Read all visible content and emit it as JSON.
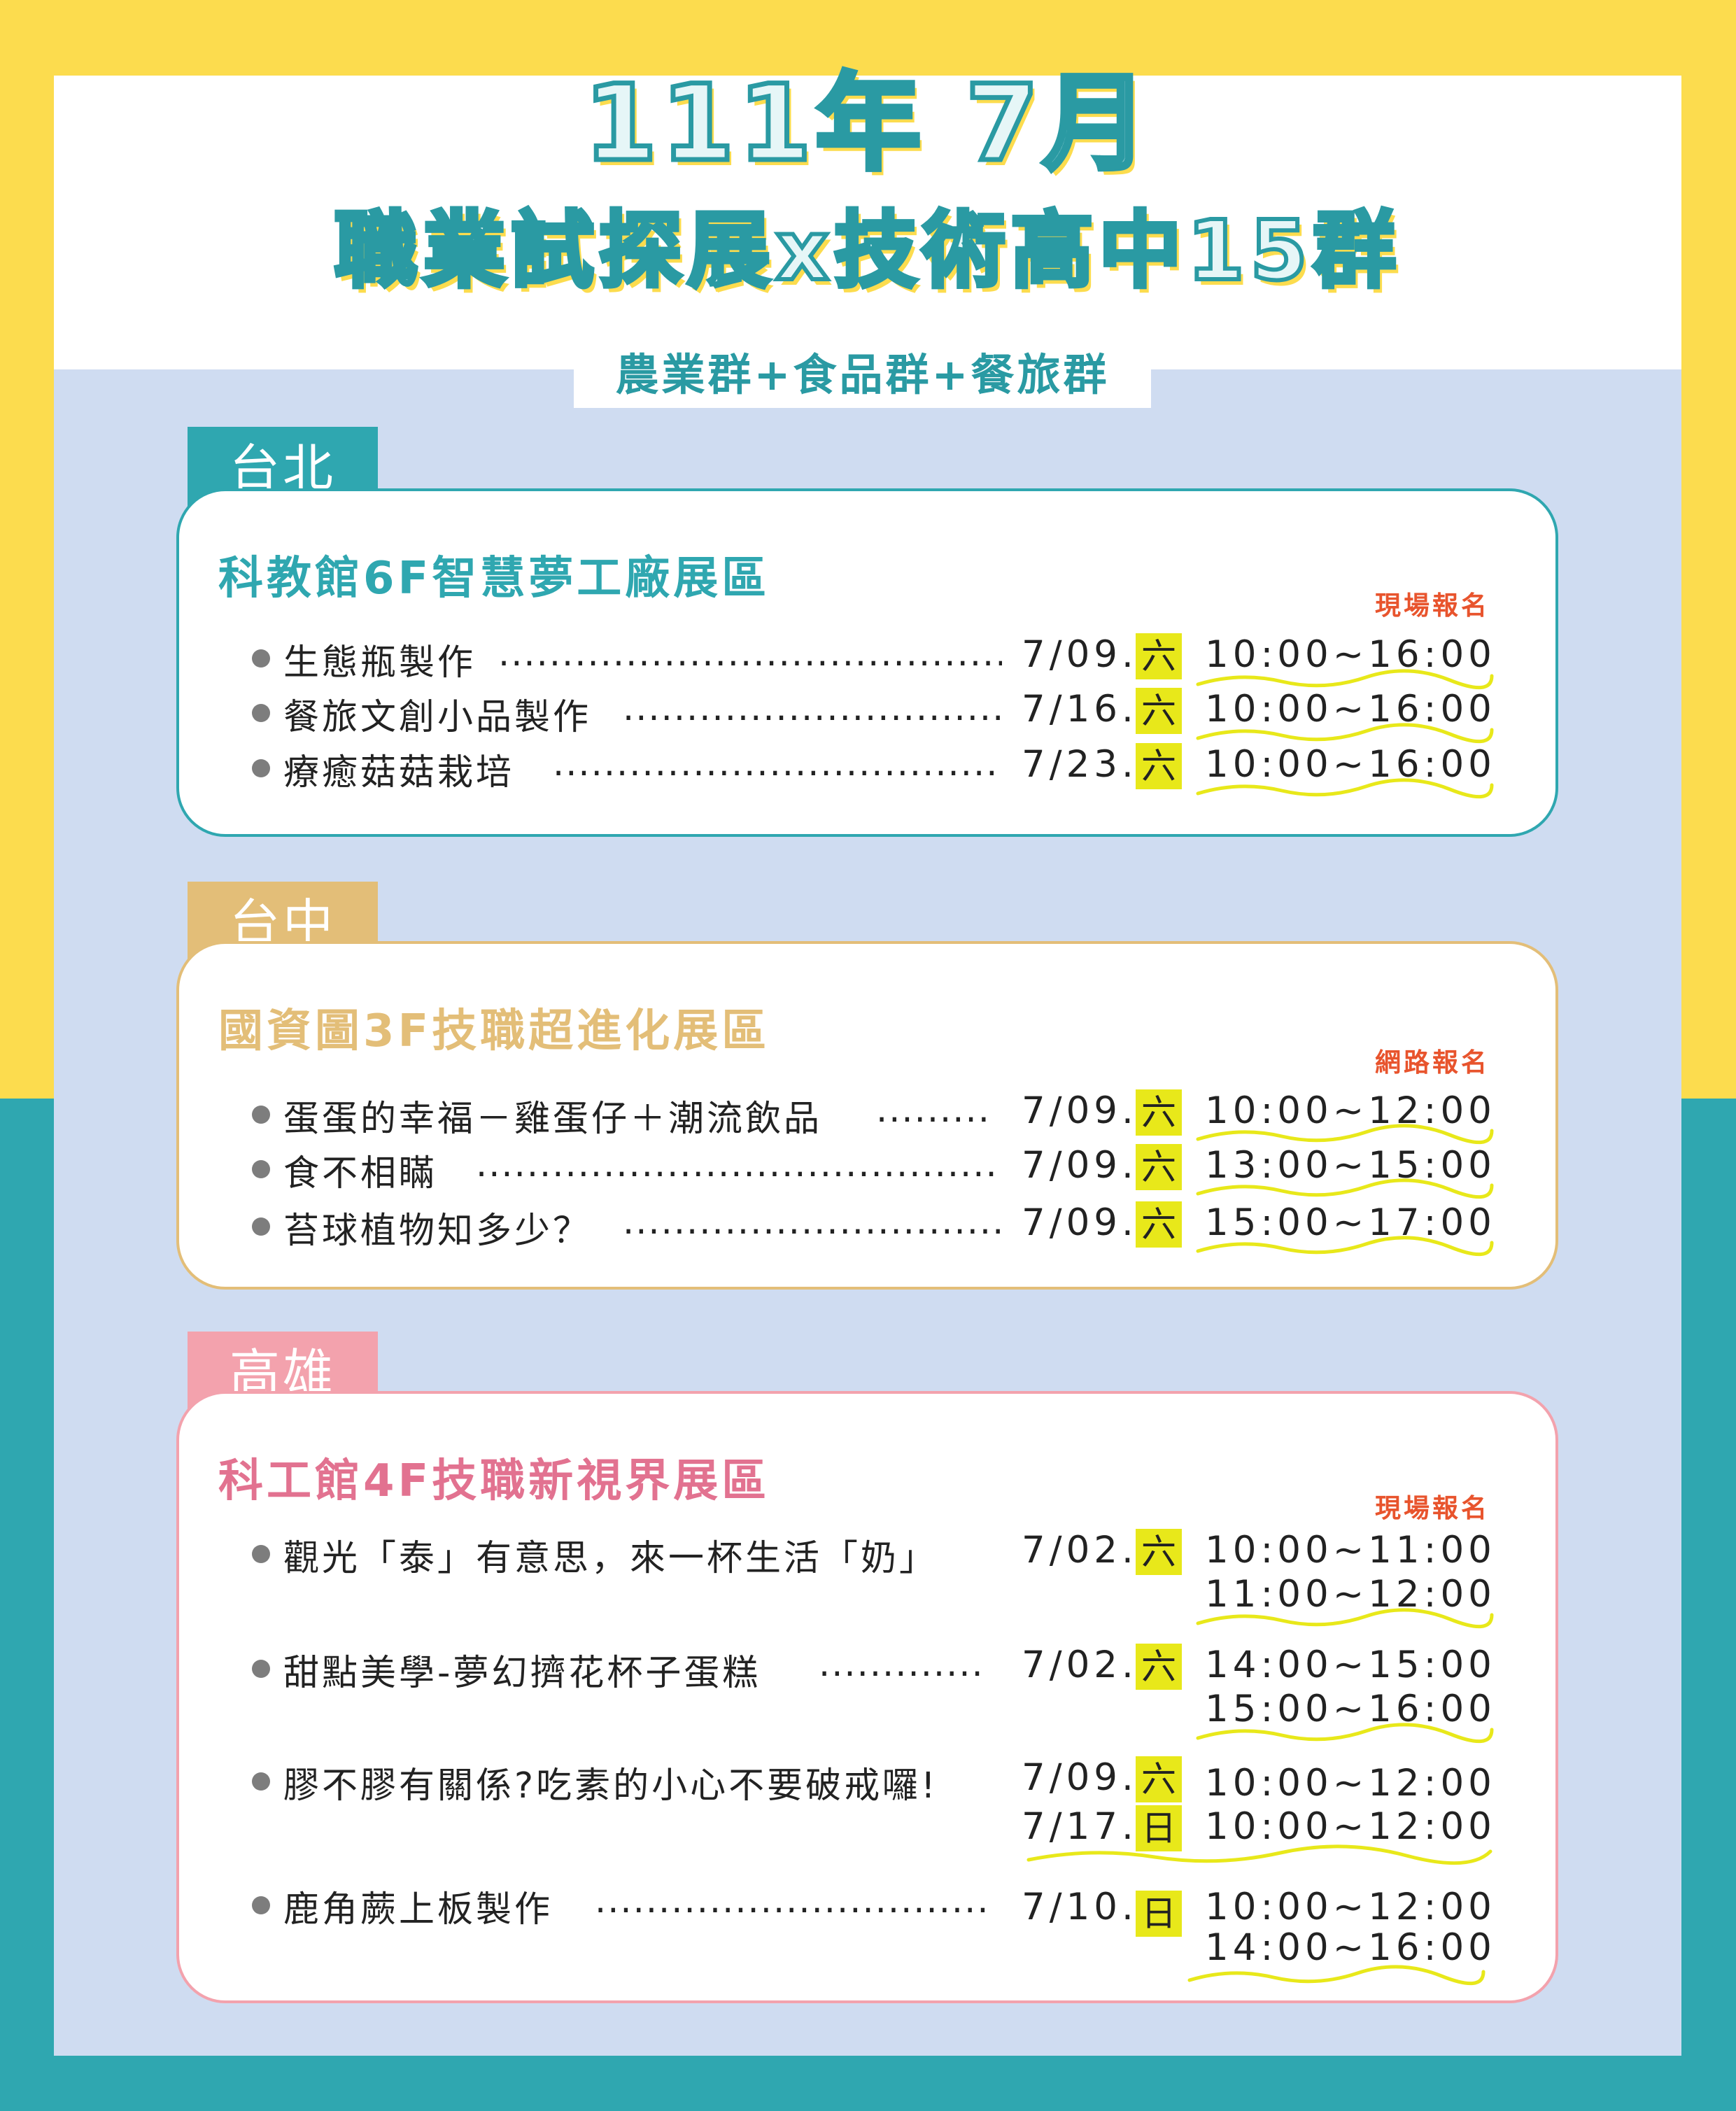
{
  "header": {
    "title_line1": "111年 7月",
    "title_line2": "職業試探展x技術高中15群",
    "subtitle": "農業群+食品群+餐旅群"
  },
  "colors": {
    "yellow_bg": "#fcdc4e",
    "teal_bg": "#2fa7b0",
    "light_blue_panel": "#cfdcf1",
    "taipei": "#2fa7b0",
    "taichung": "#e3be78",
    "kaohsiung": "#f3a2ad",
    "day_highlight": "#e8e81a",
    "registration": "#e8542d"
  },
  "sections": [
    {
      "city": "台北",
      "venue": "科教館6F智慧夢工廠展區",
      "registration": "現場報名",
      "items": [
        {
          "activity": "生態瓶製作",
          "dots": "........................................",
          "date": "7/09.",
          "day": "六",
          "times": [
            "10:00~16:00"
          ]
        },
        {
          "activity": "餐旅文創小品製作",
          "dots": "..............................",
          "date": "7/16.",
          "day": "六",
          "times": [
            "10:00~16:00"
          ]
        },
        {
          "activity": "療癒菇菇栽培",
          "dots": "....................................",
          "date": "7/23.",
          "day": "六",
          "times": [
            "10:00~16:00"
          ]
        }
      ]
    },
    {
      "city": "台中",
      "venue": "國資圖3F技職超進化展區",
      "registration": "網路報名",
      "items": [
        {
          "activity": "蛋蛋的幸福－雞蛋仔＋潮流飲品",
          "dots": ".........",
          "date": "7/09.",
          "day": "六",
          "times": [
            "10:00~12:00"
          ]
        },
        {
          "activity": "食不相瞞",
          "dots": ".........................................",
          "date": "7/09.",
          "day": "六",
          "times": [
            "13:00~15:00"
          ]
        },
        {
          "activity": "苔球植物知多少？",
          "dots": "..............................",
          "date": "7/09.",
          "day": "六",
          "times": [
            "15:00~17:00"
          ]
        }
      ]
    },
    {
      "city": "高雄",
      "venue": "科工館4F技職新視界展區",
      "registration": "現場報名",
      "items": [
        {
          "activity": "觀光「泰」有意思，來一杯生活「奶」",
          "dots": "",
          "date": "7/02.",
          "day": "六",
          "times": [
            "10:00~11:00",
            "11:00~12:00"
          ]
        },
        {
          "activity": "甜點美學-夢幻擠花杯子蛋糕",
          "dots": ".............",
          "date": "7/02.",
          "day": "六",
          "times": [
            "14:00~15:00",
            "15:00~16:00"
          ]
        },
        {
          "activity": "膠不膠有關係?吃素的小心不要破戒囉!",
          "dots": "",
          "date": "7/09.",
          "day": "六",
          "times": [
            "10:00~12:00"
          ],
          "date2": "7/17.",
          "day2": "日",
          "times2": [
            "10:00~12:00"
          ]
        },
        {
          "activity": "鹿角蕨上板製作",
          "dots": "...............................",
          "date": "7/10.",
          "day": "日",
          "times": [
            "10:00~12:00",
            "14:00~16:00"
          ]
        }
      ]
    }
  ]
}
